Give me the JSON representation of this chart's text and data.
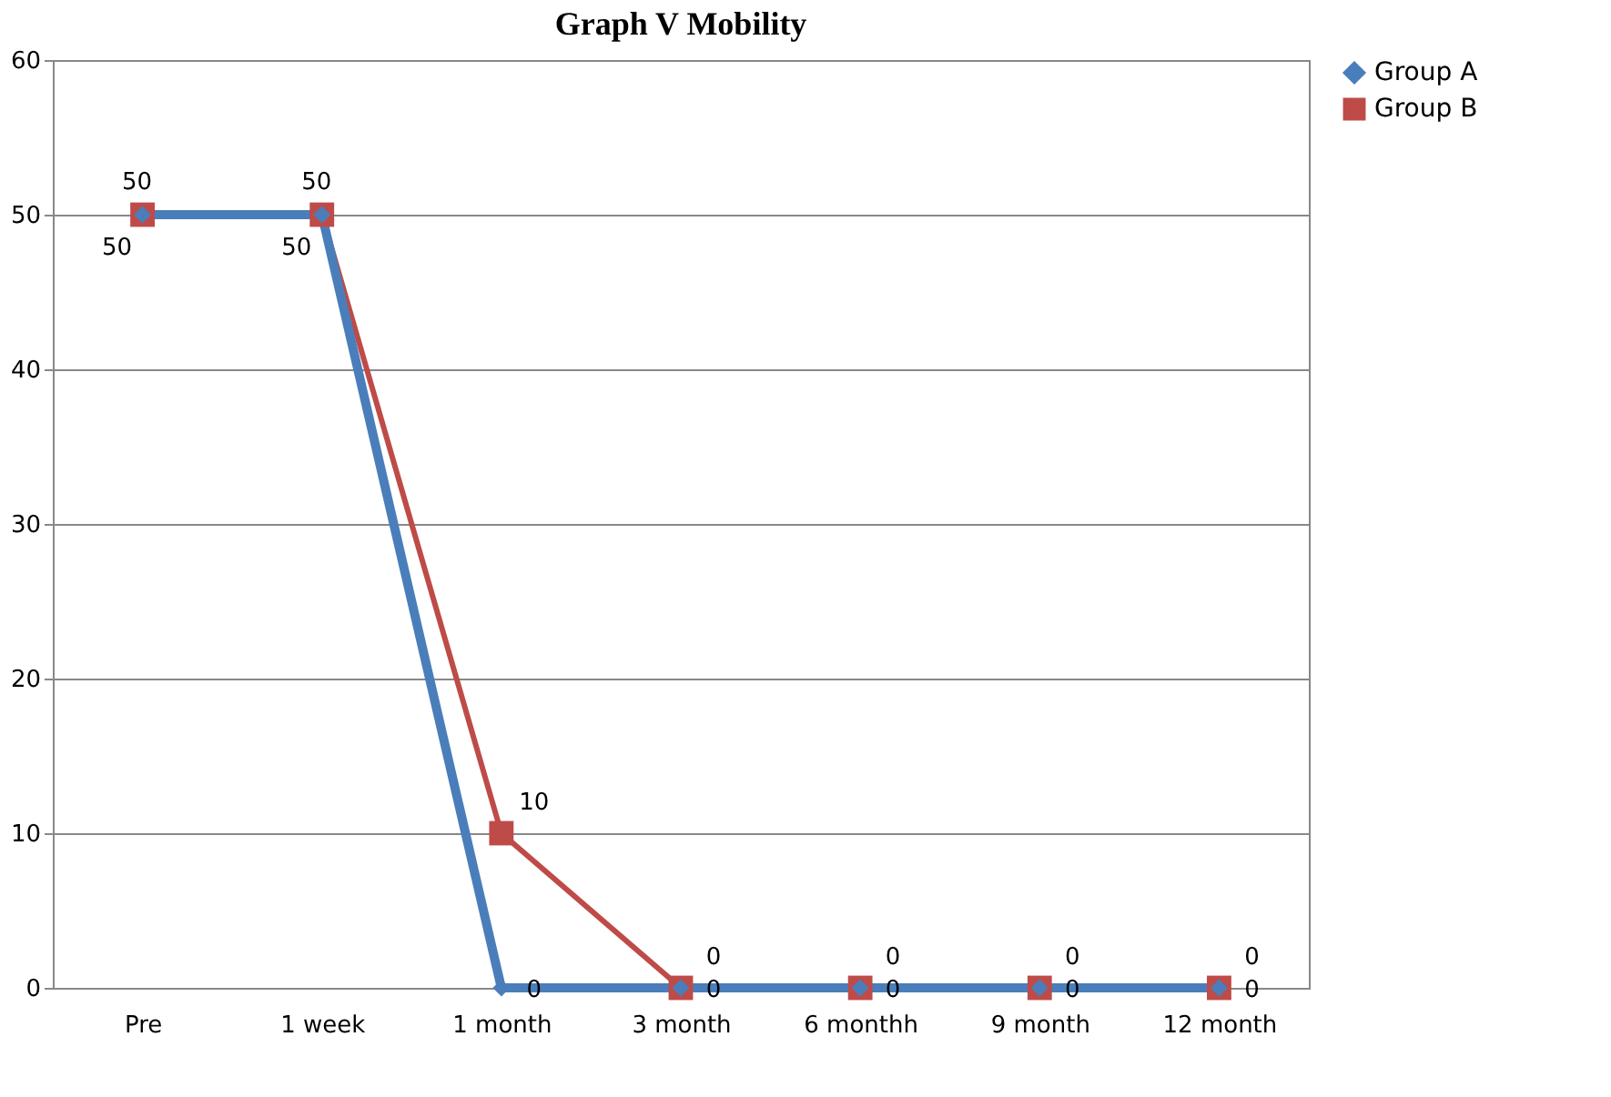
{
  "chart_data": {
    "type": "line",
    "title": "Graph V Mobility",
    "categories": [
      "Pre",
      "1 week",
      "1 month",
      "3 month",
      "6 monthh",
      "9 month",
      "12 month"
    ],
    "series": [
      {
        "name": "Group A",
        "color": "#4a7ebb",
        "marker": "diamond",
        "values": [
          50,
          50,
          0,
          0,
          0,
          0,
          0
        ]
      },
      {
        "name": "Group B",
        "color": "#be4b48",
        "marker": "square",
        "values": [
          50,
          50,
          10,
          0,
          0,
          0,
          0
        ]
      }
    ],
    "ylim": [
      0,
      60
    ],
    "yticks": [
      0,
      10,
      20,
      30,
      40,
      50,
      60
    ],
    "grid": "y",
    "legend": "right",
    "data_labels": true
  }
}
